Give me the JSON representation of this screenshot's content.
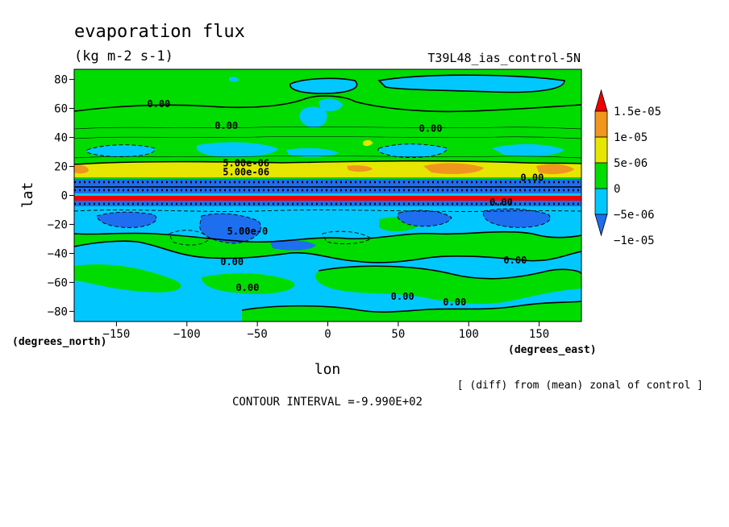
{
  "chart_data": {
    "type": "heatmap",
    "title": "evaporation flux",
    "units": "(kg m-2 s-1)",
    "run_label": "T39L48_ias_control-5N",
    "xlabel": "lon",
    "ylabel": "lat",
    "x_unit_label": "(degrees_east)",
    "y_unit_label": "(degrees_north)",
    "xlim": [
      -180,
      180
    ],
    "ylim": [
      -87,
      87
    ],
    "x_ticks": [
      -150,
      -100,
      -50,
      0,
      50,
      100,
      150
    ],
    "y_ticks": [
      80,
      60,
      40,
      20,
      0,
      -20,
      -40,
      -60,
      -80
    ],
    "x_tick_labels": [
      "−150",
      "−100",
      "−50",
      "0",
      "50",
      "100",
      "150"
    ],
    "y_tick_labels": [
      "80",
      "60",
      "40",
      "20",
      "0",
      "−20",
      "−40",
      "−60",
      "−80"
    ],
    "colorbar": {
      "levels": [
        -1.5e-05,
        -1e-05,
        -5e-06,
        0,
        5e-06,
        1e-05,
        1.5e-05
      ],
      "labels": [
        "1.5e-05",
        "1e-05",
        "5e-06",
        "0",
        "−5e-06",
        "−1e-05"
      ],
      "colors": [
        "#1e6ef0",
        "#00c8ff",
        "#00dc00",
        "#e6e600",
        "#f0961e",
        "#f00000"
      ]
    },
    "contour_labels": [
      {
        "text": "0.00",
        "lon": -120,
        "lat": 61
      },
      {
        "text": "0.00",
        "lon": -72,
        "lat": 46
      },
      {
        "text": "0.00",
        "lon": 73,
        "lat": 44
      },
      {
        "text": "5.00e-06",
        "lon": -58,
        "lat": 20
      },
      {
        "text": "5.00e-06",
        "lon": -58,
        "lat": 14
      },
      {
        "text": "0.00",
        "lon": 145,
        "lat": 10
      },
      {
        "text": "0.00",
        "lon": 123,
        "lat": -7
      },
      {
        "text": "5.00e-0",
        "lon": -57,
        "lat": -27
      },
      {
        "text": "0.00",
        "lon": -68,
        "lat": -48
      },
      {
        "text": "0.00",
        "lon": 133,
        "lat": -47
      },
      {
        "text": "0.00",
        "lon": -57,
        "lat": -66
      },
      {
        "text": "0.00",
        "lon": 53,
        "lat": -72
      },
      {
        "text": "0.00",
        "lon": 90,
        "lat": -76
      }
    ],
    "footnote": "[ (diff) from (mean) zonal of control ]",
    "contour_interval": "CONTOUR INTERVAL =-9.990E+02",
    "grid": false,
    "legend_position": "right"
  }
}
